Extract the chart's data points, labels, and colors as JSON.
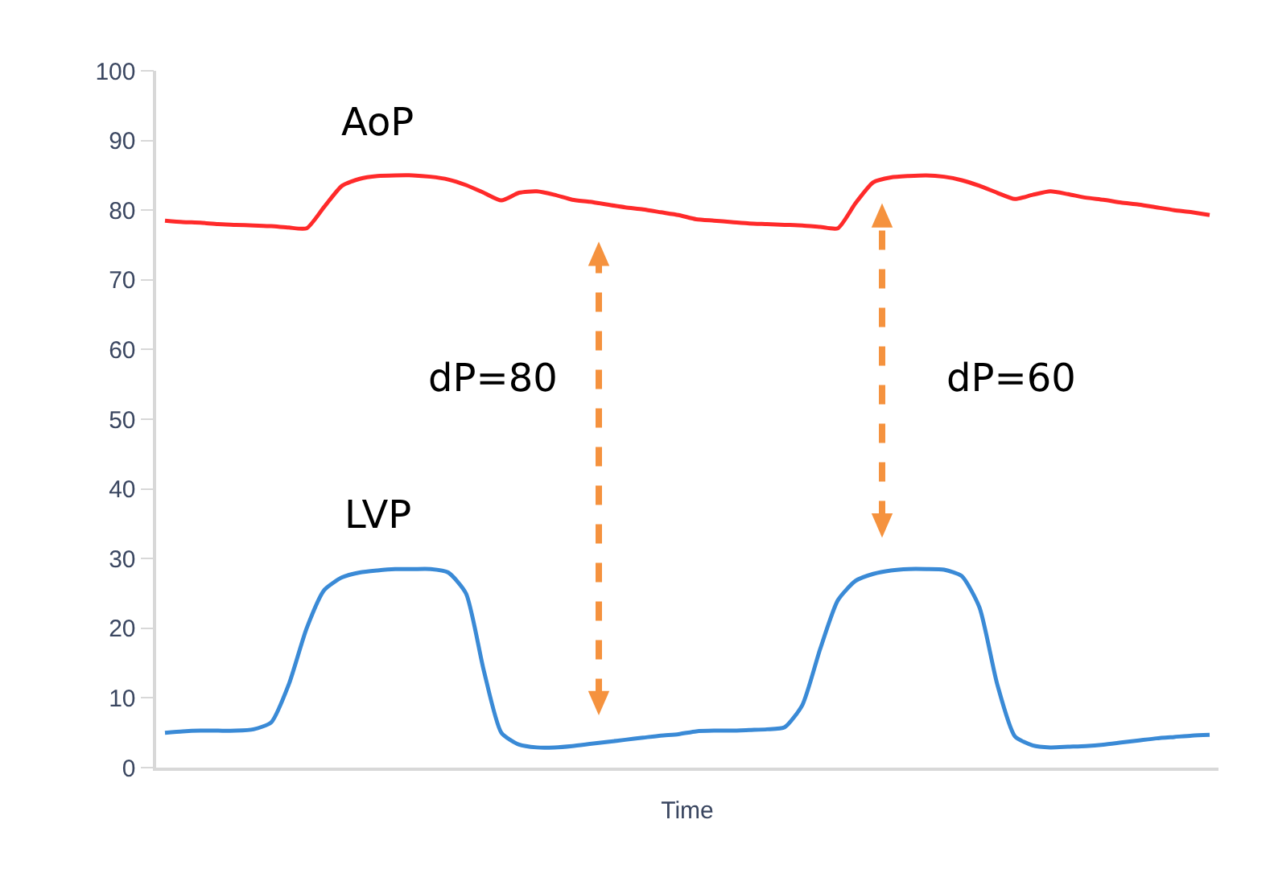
{
  "chart_data": {
    "type": "line",
    "xlabel": "Time",
    "categories": [
      null,
      null,
      null,
      null,
      null,
      null,
      null,
      null,
      null,
      null,
      null,
      null,
      null,
      null,
      null,
      null,
      null,
      null,
      null,
      null,
      null,
      null,
      null,
      null,
      null,
      null,
      null,
      null,
      null,
      null,
      null,
      null,
      null,
      null,
      null,
      null,
      null,
      null,
      null,
      null,
      null,
      null,
      null,
      null,
      null,
      null,
      null,
      null,
      null,
      null,
      null,
      null,
      null,
      null,
      null,
      null,
      null,
      null,
      null,
      null
    ],
    "series": [
      {
        "name": "AoP",
        "color": "#ff2a2a",
        "values": [
          78.5,
          78.3,
          78.2,
          78,
          77.9,
          77.8,
          77.7,
          77.5,
          77.4,
          80.5,
          83.5,
          84.5,
          84.9,
          85,
          85,
          84.8,
          84.4,
          83.6,
          82.5,
          81.4,
          82.5,
          82.7,
          82.2,
          81.5,
          81.2,
          80.8,
          80.4,
          80.1,
          79.7,
          79.3,
          78.7,
          78.5,
          78.3,
          78.1,
          78,
          77.9,
          77.8,
          77.6,
          77.4,
          81,
          84,
          84.7,
          84.9,
          85,
          84.8,
          84.3,
          83.5,
          82.5,
          81.6,
          82.2,
          82.7,
          82.3,
          81.8,
          81.5,
          81.1,
          80.8,
          80.4,
          80,
          79.7,
          79.3
        ]
      },
      {
        "name": "LVP",
        "color": "#3a8ad6",
        "values": [
          5,
          5.2,
          5.3,
          5.3,
          5.3,
          5.5,
          6.5,
          12,
          20,
          25.5,
          27.3,
          28,
          28.3,
          28.5,
          28.5,
          28.5,
          28,
          25,
          14,
          5,
          3.3,
          2.9,
          2.9,
          3.1,
          3.4,
          3.7,
          4,
          4.3,
          4.6,
          4.8,
          5.2,
          5.3,
          5.3,
          5.4,
          5.5,
          5.8,
          9,
          17,
          24,
          26.8,
          27.8,
          28.3,
          28.5,
          28.5,
          28.4,
          27.5,
          23,
          12,
          4.5,
          3.2,
          2.9,
          3,
          3.1,
          3.3,
          3.6,
          3.9,
          4.2,
          4.4,
          4.6,
          4.7
        ]
      }
    ],
    "annotations": [
      "dP=80",
      "dP=60"
    ],
    "ylim": [
      0,
      100
    ],
    "yticks": [
      0,
      10,
      20,
      30,
      40,
      50,
      60,
      70,
      80,
      90,
      100
    ],
    "legend": false,
    "marker": "none",
    "line_style": "solid"
  }
}
